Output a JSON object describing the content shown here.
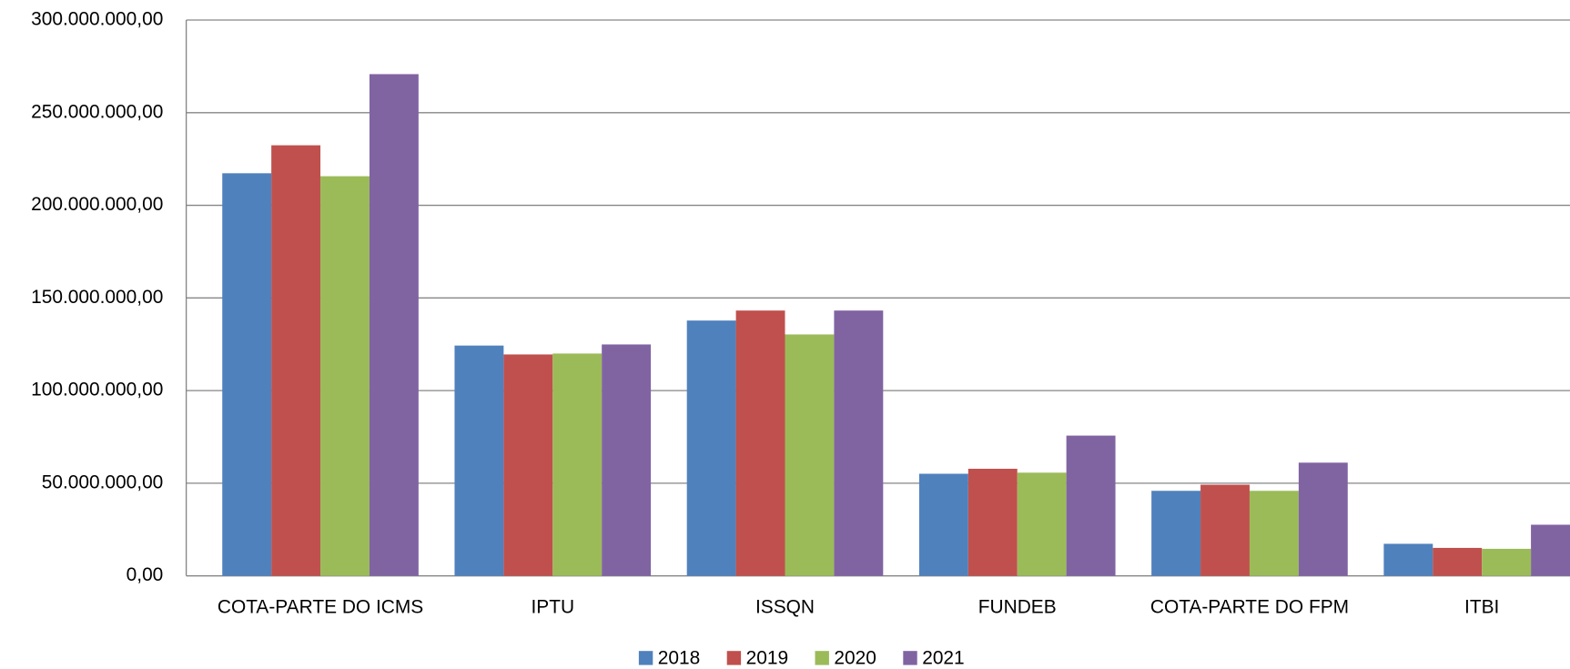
{
  "chart_data": {
    "type": "bar",
    "categories": [
      "COTA-PARTE DO ICMS",
      "IPTU",
      "ISSQN",
      "FUNDEB",
      "COTA-PARTE DO FPM",
      "ITBI"
    ],
    "series": [
      {
        "name": "2018",
        "color": "#4f81bd",
        "values": [
          217300000,
          124300000,
          137800000,
          55100000,
          45900000,
          17300000
        ]
      },
      {
        "name": "2019",
        "color": "#c0504d",
        "values": [
          232400000,
          119500000,
          143200000,
          57800000,
          49200000,
          15100000
        ]
      },
      {
        "name": "2020",
        "color": "#9bbb59",
        "values": [
          215700000,
          120000000,
          130300000,
          55700000,
          45900000,
          14600000
        ]
      },
      {
        "name": "2021",
        "color": "#8064a2",
        "values": [
          270800000,
          124900000,
          143200000,
          75700000,
          61100000,
          27600000
        ]
      }
    ],
    "ylim": [
      0,
      300000000
    ],
    "yticks": [
      {
        "value": 0,
        "label": "0,00"
      },
      {
        "value": 50000000,
        "label": "50.000.000,00"
      },
      {
        "value": 100000000,
        "label": "100.000.000,00"
      },
      {
        "value": 150000000,
        "label": "150.000.000,00"
      },
      {
        "value": 200000000,
        "label": "200.000.000,00"
      },
      {
        "value": 250000000,
        "label": "250.000.000,00"
      },
      {
        "value": 300000000,
        "label": "300.000.000,00"
      }
    ],
    "grid": true,
    "legend": "bottom"
  }
}
